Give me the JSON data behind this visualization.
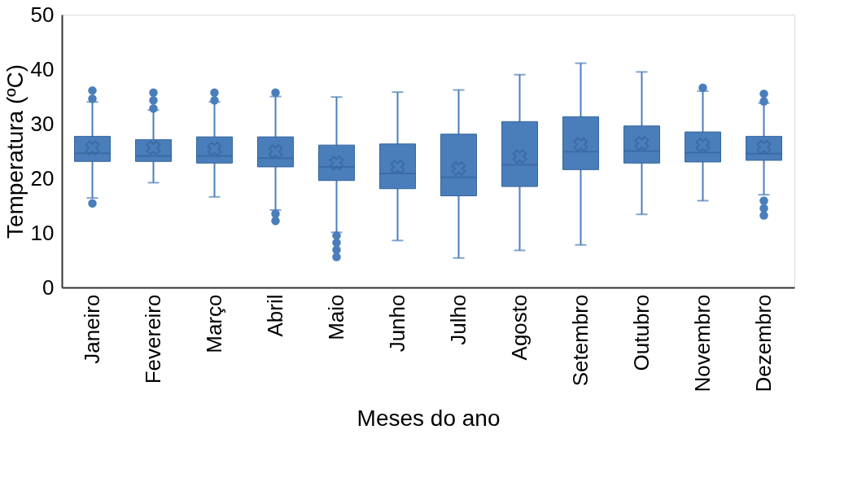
{
  "chart_data": {
    "type": "box",
    "xlabel": "Meses do ano",
    "ylabel": "Temperatura (ºC)",
    "categories": [
      "Janeiro",
      "Fevereiro",
      "Março",
      "Abril",
      "Maio",
      "Junho",
      "Julho",
      "Agosto",
      "Setembro",
      "Outubro",
      "Novembro",
      "Dezembro"
    ],
    "color": "#4a7ebb",
    "ylim": [
      0,
      50
    ],
    "yticks": [
      0,
      10,
      20,
      30,
      40,
      50
    ],
    "grid": false,
    "boxes": [
      {
        "low": 16.4,
        "q1": 23.1,
        "median": 24.6,
        "q3": 27.7,
        "high": 34.0,
        "mean": 25.6,
        "outliers": [
          36.1,
          34.6,
          15.4
        ]
      },
      {
        "low": 19.2,
        "q1": 23.1,
        "median": 24.1,
        "q3": 27.1,
        "high": 32.5,
        "mean": 25.6,
        "outliers": [
          35.7,
          34.3,
          32.8
        ]
      },
      {
        "low": 16.6,
        "q1": 22.8,
        "median": 24.1,
        "q3": 27.6,
        "high": 34.0,
        "mean": 25.4,
        "outliers": [
          35.7,
          34.3
        ]
      },
      {
        "low": 14.2,
        "q1": 22.1,
        "median": 23.7,
        "q3": 27.6,
        "high": 35.0,
        "mean": 24.9,
        "outliers": [
          35.7,
          13.5,
          12.2
        ]
      },
      {
        "low": 10.1,
        "q1": 19.6,
        "median": 22.1,
        "q3": 26.1,
        "high": 34.9,
        "mean": 22.8,
        "outliers": [
          9.5,
          8.2,
          6.9,
          5.6
        ]
      },
      {
        "low": 8.6,
        "q1": 18.1,
        "median": 20.9,
        "q3": 26.3,
        "high": 35.8,
        "mean": 22.1
      },
      {
        "low": 5.4,
        "q1": 16.8,
        "median": 20.2,
        "q3": 28.1,
        "high": 36.2,
        "mean": 21.8
      },
      {
        "low": 6.8,
        "q1": 18.5,
        "median": 22.5,
        "q3": 30.4,
        "high": 39.0,
        "mean": 24.0
      },
      {
        "low": 7.8,
        "q1": 21.6,
        "median": 24.9,
        "q3": 31.3,
        "high": 41.1,
        "mean": 26.2
      },
      {
        "low": 13.4,
        "q1": 22.8,
        "median": 25.0,
        "q3": 29.6,
        "high": 39.5,
        "mean": 26.4
      },
      {
        "low": 15.9,
        "q1": 23.0,
        "median": 24.7,
        "q3": 28.5,
        "high": 36.0,
        "mean": 26.1,
        "outliers": [
          36.6
        ]
      },
      {
        "low": 17.0,
        "q1": 23.3,
        "median": 24.5,
        "q3": 27.7,
        "high": 33.8,
        "mean": 25.7,
        "outliers": [
          35.5,
          34.1,
          15.9,
          14.5,
          13.2
        ]
      }
    ]
  }
}
